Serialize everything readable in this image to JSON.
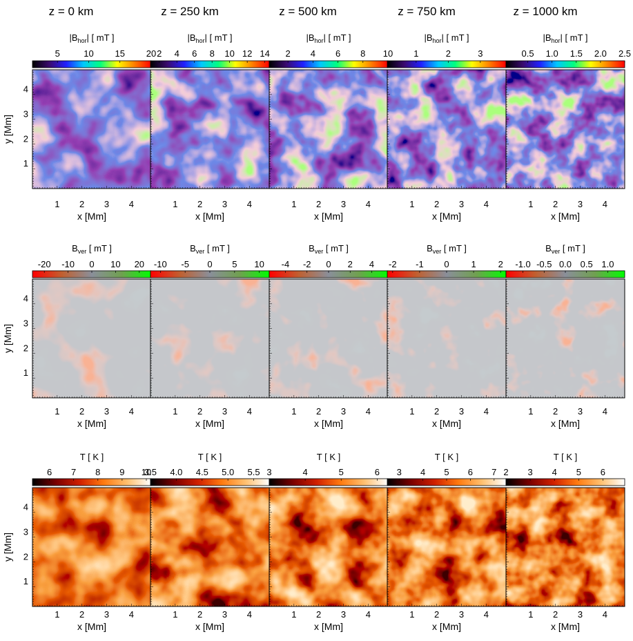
{
  "figure": {
    "column_titles": [
      "z = 0 km",
      "z = 250 km",
      "z = 500 km",
      "z = 750 km",
      "z = 1000 km"
    ],
    "xlabel": "x [Mm]",
    "ylabel": "y [Mm]",
    "x_ticks": [
      "1",
      "2",
      "3",
      "4"
    ],
    "y_ticks": [
      "1",
      "2",
      "3",
      "4"
    ]
  },
  "chart_data": {
    "type": "heatmap",
    "domain_x_Mm": [
      0,
      4.8
    ],
    "domain_y_Mm": [
      0,
      4.8
    ],
    "rows": [
      {
        "quantity": "|B_hor|",
        "colorbar_label": "|Bhor|  [ mT ]",
        "colorbar_base": "|B",
        "colorbar_sub": "hor",
        "colorbar_tail": "|  [ mT ]",
        "colormap": "rainbow",
        "colormap_colors": [
          "#000000",
          "#3a0a6e",
          "#2020ff",
          "#00c8ff",
          "#00ff80",
          "#ffff00",
          "#ff8000",
          "#ff0000"
        ],
        "panels": [
          {
            "z": "z = 0 km",
            "range": [
              1,
              20
            ],
            "ticks": [
              "5",
              "10",
              "15",
              "20"
            ]
          },
          {
            "z": "z = 250 km",
            "range": [
              1,
              14.5
            ],
            "ticks": [
              "2",
              "4",
              "6",
              "8",
              "10",
              "12",
              "14"
            ]
          },
          {
            "z": "z = 500 km",
            "range": [
              0.5,
              10
            ],
            "ticks": [
              "2",
              "4",
              "6",
              "8",
              "10"
            ]
          },
          {
            "z": "z = 750 km",
            "range": [
              0.1,
              3.8
            ],
            "ticks": [
              "1",
              "2",
              "3"
            ]
          },
          {
            "z": "z = 1000 km",
            "range": [
              0.05,
              2.5
            ],
            "ticks": [
              "0.5",
              "1.0",
              "1.5",
              "2.0",
              "2.5"
            ]
          }
        ]
      },
      {
        "quantity": "B_ver",
        "colorbar_label": "Bver  [ mT ]",
        "colorbar_base": "B",
        "colorbar_sub": "ver",
        "colorbar_tail": "  [ mT ]",
        "colormap": "red-gray-green",
        "colormap_colors": [
          "#ff0000",
          "#c06030",
          "#8a8f9a",
          "#70a050",
          "#00ff00"
        ],
        "panels": [
          {
            "z": "z = 0 km",
            "range": [
              -25,
              25
            ],
            "ticks": [
              "-20",
              "-10",
              "0",
              "10",
              "20"
            ]
          },
          {
            "z": "z = 250 km",
            "range": [
              -12,
              12
            ],
            "ticks": [
              "-10",
              "-5",
              "0",
              "5",
              "10"
            ]
          },
          {
            "z": "z = 500 km",
            "range": [
              -5.5,
              5.5
            ],
            "ticks": [
              "-4",
              "-2",
              "0",
              "2",
              "4"
            ]
          },
          {
            "z": "z = 750 km",
            "range": [
              -2.2,
              2.2
            ],
            "ticks": [
              "-2",
              "-1",
              "0",
              "1",
              "2"
            ]
          },
          {
            "z": "z = 1000 km",
            "range": [
              -1.4,
              1.4
            ],
            "ticks": [
              "-1.0",
              "-0.5",
              "0.0",
              "0.5",
              "1.0"
            ]
          }
        ]
      },
      {
        "quantity": "T",
        "colorbar_label": "T [ K ]",
        "colorbar_base": "T [ K ]",
        "colorbar_sub": "",
        "colorbar_tail": "",
        "colormap": "heat",
        "colormap_colors": [
          "#000000",
          "#7a0000",
          "#d02000",
          "#ff7a10",
          "#ffc070",
          "#ffffff"
        ],
        "panels": [
          {
            "z": "z = 0 km",
            "range": [
              5.3,
              10.2
            ],
            "ticks": [
              "6",
              "7",
              "8",
              "9",
              "10"
            ]
          },
          {
            "z": "z = 250 km",
            "range": [
              3.5,
              5.8
            ],
            "ticks": [
              "3.5",
              "4.0",
              "4.5",
              "5.0",
              "5.5"
            ]
          },
          {
            "z": "z = 500 km",
            "range": [
              3,
              6.3
            ],
            "ticks": [
              "3",
              "4",
              "5",
              "6"
            ]
          },
          {
            "z": "z = 750 km",
            "range": [
              2.5,
              7.5
            ],
            "ticks": [
              "3",
              "4",
              "5",
              "6",
              "7"
            ]
          },
          {
            "z": "z = 1000 km",
            "range": [
              2,
              6.9
            ],
            "ticks": [
              "2",
              "3",
              "4",
              "5",
              "6"
            ]
          }
        ]
      }
    ]
  }
}
